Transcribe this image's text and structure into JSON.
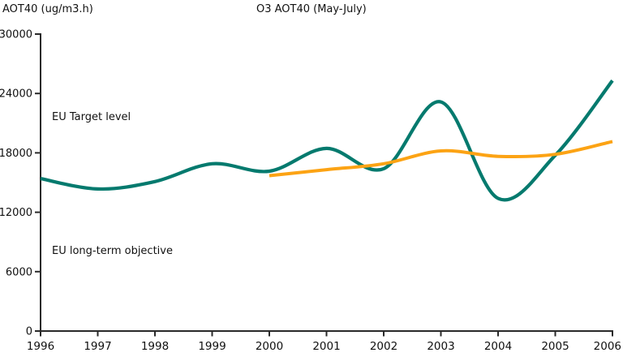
{
  "chart_data": {
    "type": "line",
    "title": "O3 AOT40 (May-July)",
    "y_axis_title": "AOT40 (ug/m3.h)",
    "xlim": [
      1996,
      2006
    ],
    "ylim": [
      0,
      30000
    ],
    "y_ticks": [
      0,
      6000,
      12000,
      18000,
      24000,
      30000
    ],
    "x_tick_labels": [
      "1996",
      "1997",
      "1998",
      "1999",
      "2000",
      "2001",
      "2002",
      "2003",
      "2004",
      "2005",
      "2006"
    ],
    "grid": false,
    "legend": "none",
    "axis_color": "#2a2a2a",
    "text_color": "#111111",
    "background_color": "#ffffff",
    "series": [
      {
        "name": "teal-line",
        "color": "#057a6e",
        "stroke_width": 4.2,
        "x": [
          1996,
          1997,
          1998,
          1999,
          2000,
          2001,
          2002,
          2003,
          2004,
          2005,
          2006
        ],
        "values": [
          15400,
          14350,
          15100,
          16900,
          16150,
          18450,
          16400,
          23150,
          13400,
          17750,
          25300
        ]
      },
      {
        "name": "orange-line",
        "color": "#fca314",
        "stroke_width": 4,
        "x": [
          2000,
          2001,
          2002,
          2003,
          2004,
          2005,
          2006
        ],
        "values": [
          15700,
          16300,
          16900,
          18200,
          17650,
          17850,
          19150
        ]
      }
    ],
    "annotations": [
      {
        "text": "EU Target level"
      },
      {
        "text": "EU long-term objective"
      }
    ]
  }
}
